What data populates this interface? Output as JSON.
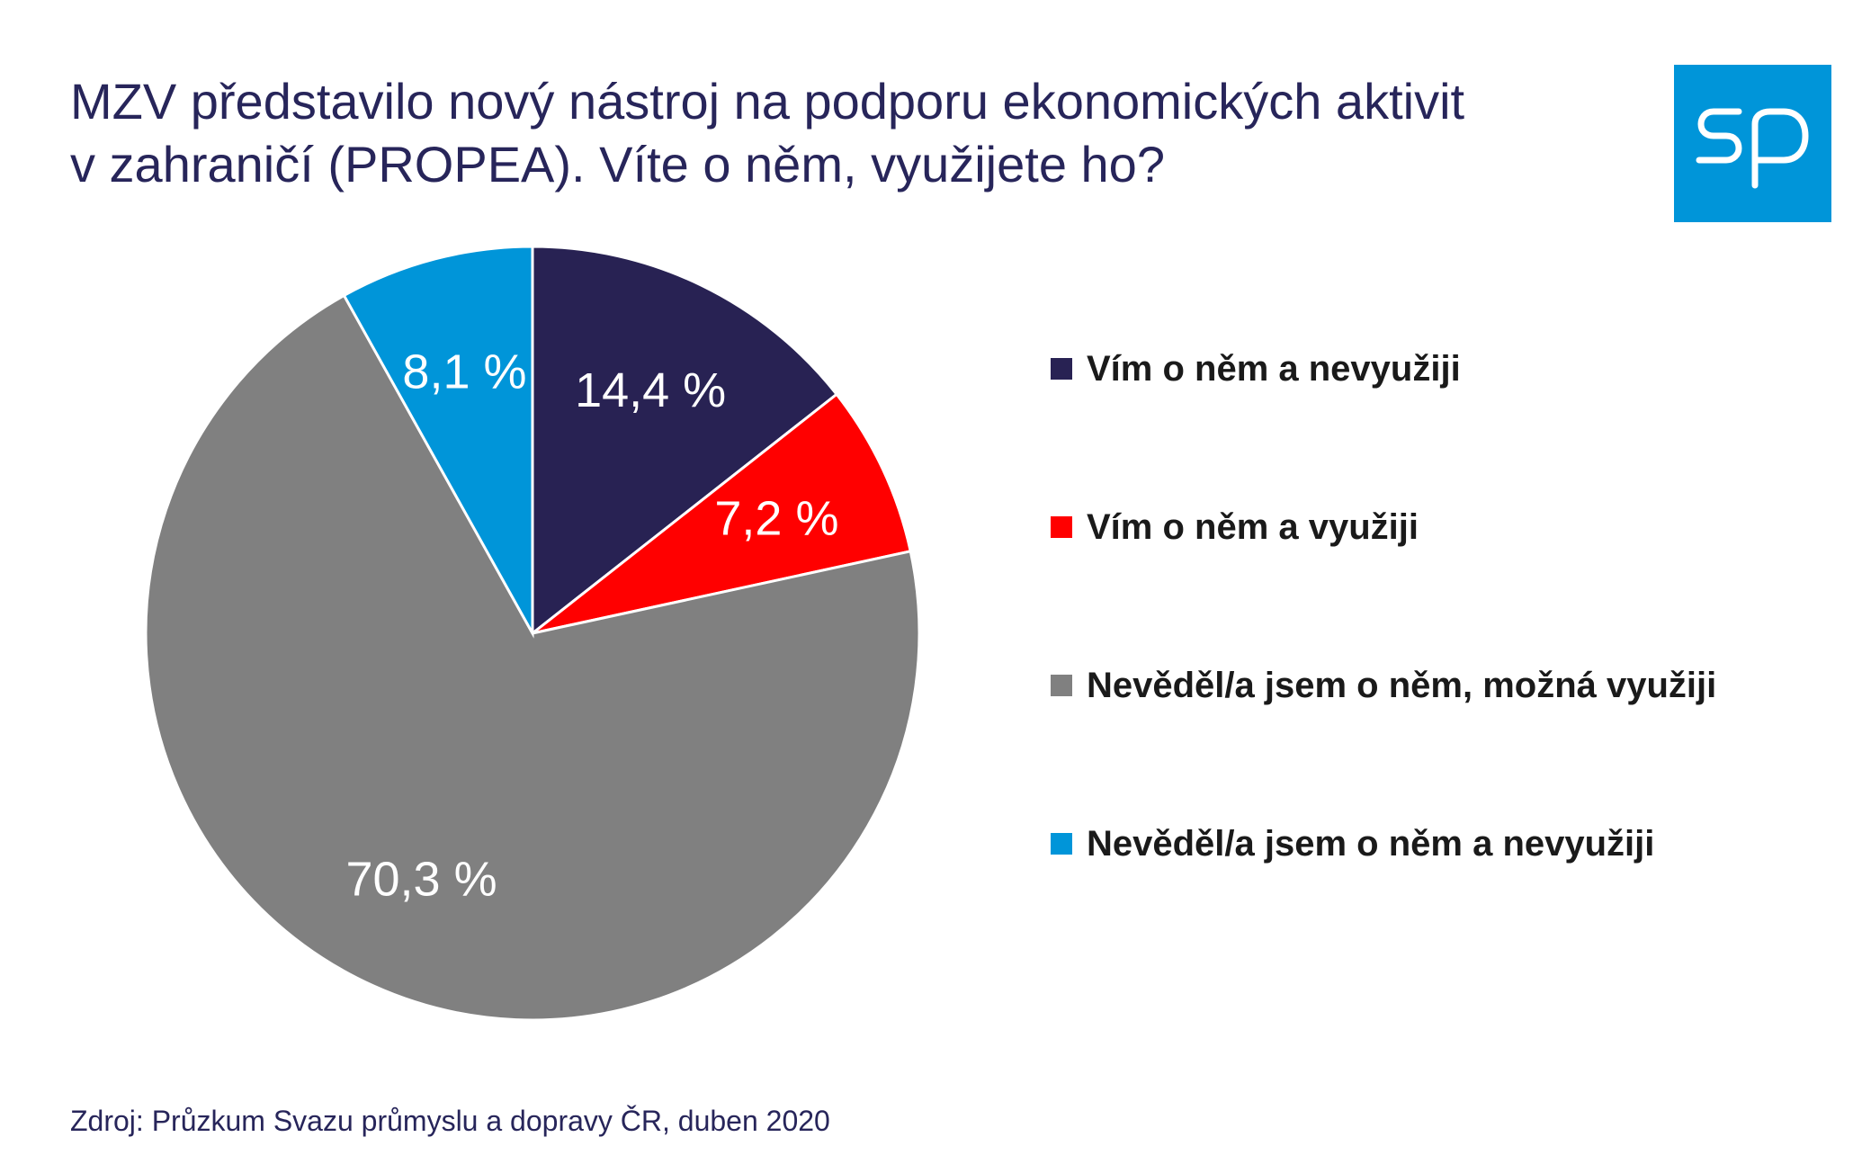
{
  "title_lines": [
    "MZV představilo nový nástroj na podporu ekonomických aktivit",
    "v zahraničí (PROPEA). Víte o něm, využijete ho?"
  ],
  "logo": {
    "text": "sp",
    "color": "#0095d9"
  },
  "source": "Zdroj: Průzkum Svazu průmyslu a dopravy ČR, duben 2020",
  "chart_data": {
    "type": "pie",
    "title": "",
    "start": "12 o'clock, clockwise",
    "slices": [
      {
        "label": "Vím o něm a nevyužiji",
        "value": 14.4,
        "value_label": "14,4 %",
        "color": "#282253"
      },
      {
        "label": "Vím o něm a využiji",
        "value": 7.2,
        "value_label": "7,2 %",
        "color": "#ff0000"
      },
      {
        "label": "Nevěděl/a jsem o něm, možná využiji",
        "value": 70.3,
        "value_label": "70,3 %",
        "color": "#808080"
      },
      {
        "label": "Nevěděl/a jsem o něm a nevyužiji",
        "value": 8.1,
        "value_label": "8,1 %",
        "color": "#0095d9"
      }
    ],
    "legend_position": "right"
  }
}
